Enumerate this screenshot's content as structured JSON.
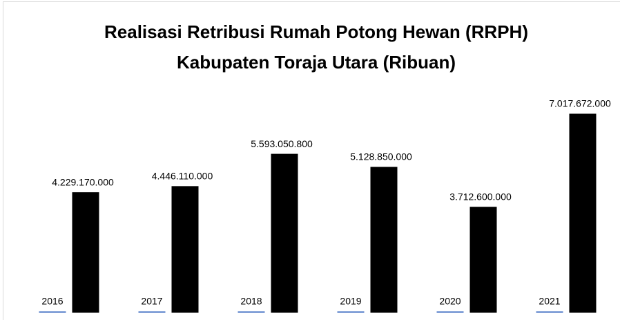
{
  "chart_data": {
    "type": "bar",
    "title": [
      "Realisasi  Retribusi Rumah Potong Hewan (RRPH)",
      "Kabupaten Toraja Utara (Ribuan)"
    ],
    "series": [
      {
        "color": "#4472c4",
        "values": [
          2016,
          2017,
          2018,
          2019,
          2020,
          2021
        ]
      },
      {
        "color": "#000000",
        "values": [
          4229170000,
          4446110000,
          5593050800,
          5128850000,
          3712600000,
          7017672000
        ],
        "value_labels": [
          "4.229.170.000",
          "4.446.110.000",
          "5.593.050.800",
          "5.128.850.000",
          "3.712.600.000",
          "7.017.672.000"
        ]
      }
    ],
    "ylim": [
      0,
      8000000000
    ]
  }
}
